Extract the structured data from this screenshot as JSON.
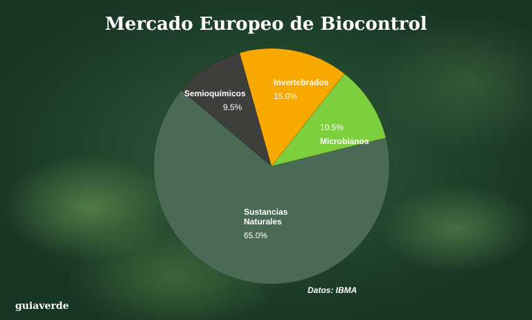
{
  "chart_data": {
    "type": "pie",
    "title": "Mercado Europeo de Biocontrol",
    "categories": [
      "Semioquímicos",
      "Invertebrados",
      "Microbianos",
      "Sustancias Naturales"
    ],
    "values": [
      9.5,
      15.0,
      10.5,
      65.0
    ],
    "value_labels": [
      "9.5%",
      "15.0%",
      "10.5%",
      "65.0%"
    ],
    "colors": [
      "#3e3e3c",
      "#f8a900",
      "#7dcf3e",
      "#4b6a55"
    ],
    "source": "Datos: IBMA"
  },
  "brand": "guiaverde"
}
